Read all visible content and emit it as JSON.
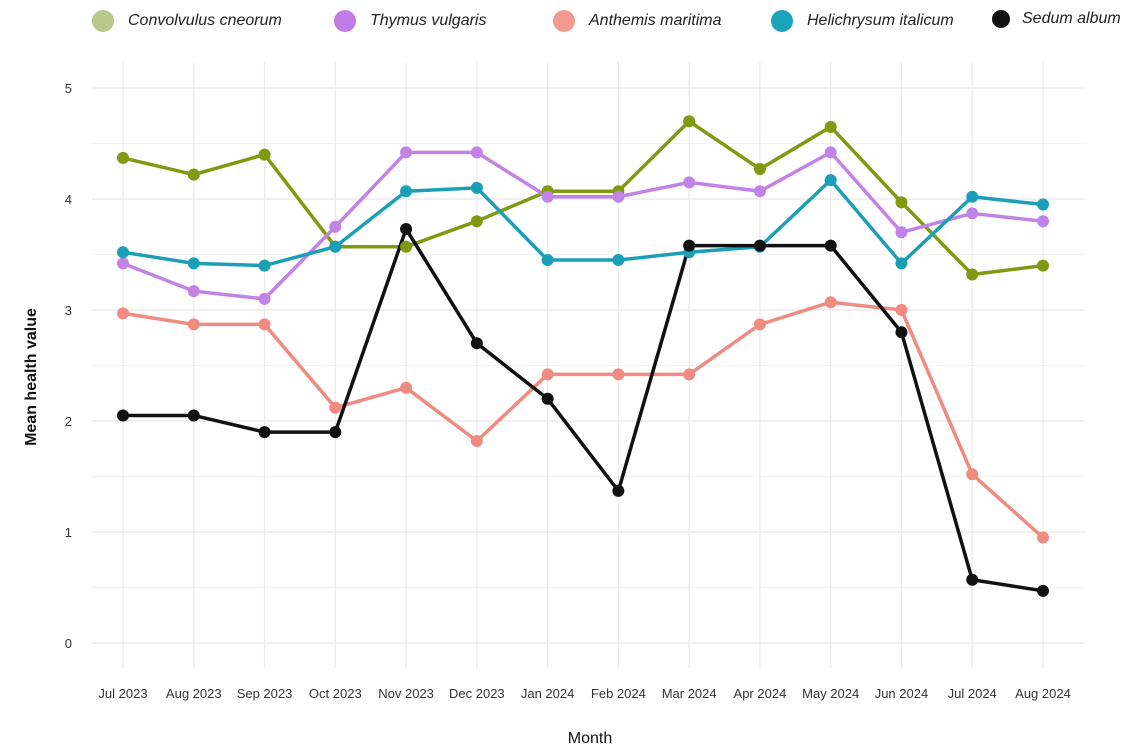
{
  "chart_data": {
    "type": "line",
    "xlabel": "Month",
    "ylabel": "Mean health value",
    "ylim": [
      0,
      5
    ],
    "yticks": [
      "0",
      "1",
      "2",
      "3",
      "4",
      "5"
    ],
    "grid": true,
    "legend_position": "top",
    "categories": [
      "Jul 2023",
      "Aug 2023",
      "Sep 2023",
      "Oct 2023",
      "Nov 2023",
      "Dec 2023",
      "Jan 2024",
      "Feb 2024",
      "Mar 2024",
      "Apr 2024",
      "May 2024",
      "Jun 2024",
      "Jul 2024",
      "Aug 2024"
    ],
    "series": [
      {
        "name": "Convolvulus cneorum",
        "color": "#7f9a10",
        "legend_color": "#b5c98a",
        "values": [
          4.37,
          4.22,
          4.4,
          3.57,
          3.57,
          3.8,
          4.07,
          4.07,
          4.7,
          4.27,
          4.65,
          3.97,
          3.32,
          3.4
        ]
      },
      {
        "name": "Thymus vulgaris",
        "color": "#c183e6",
        "legend_color": "#c27ce8",
        "values": [
          3.42,
          3.17,
          3.1,
          3.75,
          4.42,
          4.42,
          4.02,
          4.02,
          4.15,
          4.07,
          4.42,
          3.7,
          3.87,
          3.8
        ]
      },
      {
        "name": "Anthemis maritima",
        "color": "#ef8b80",
        "legend_color": "#f29a90",
        "values": [
          2.97,
          2.87,
          2.87,
          2.12,
          2.3,
          1.82,
          2.42,
          2.42,
          2.42,
          2.87,
          3.07,
          3.0,
          1.52,
          0.95
        ]
      },
      {
        "name": "Helichrysum italicum",
        "color": "#1a9fb7",
        "legend_color": "#1aa3bb",
        "values": [
          3.52,
          3.42,
          3.4,
          3.57,
          4.07,
          4.1,
          3.45,
          3.45,
          3.52,
          3.57,
          4.17,
          3.42,
          4.02,
          3.95
        ]
      },
      {
        "name": "Sedum album",
        "color": "#111111",
        "legend_color": "#111111",
        "values": [
          2.05,
          2.05,
          1.9,
          1.9,
          3.73,
          2.7,
          2.2,
          1.37,
          3.58,
          3.58,
          3.58,
          2.8,
          0.57,
          0.47
        ]
      }
    ]
  }
}
